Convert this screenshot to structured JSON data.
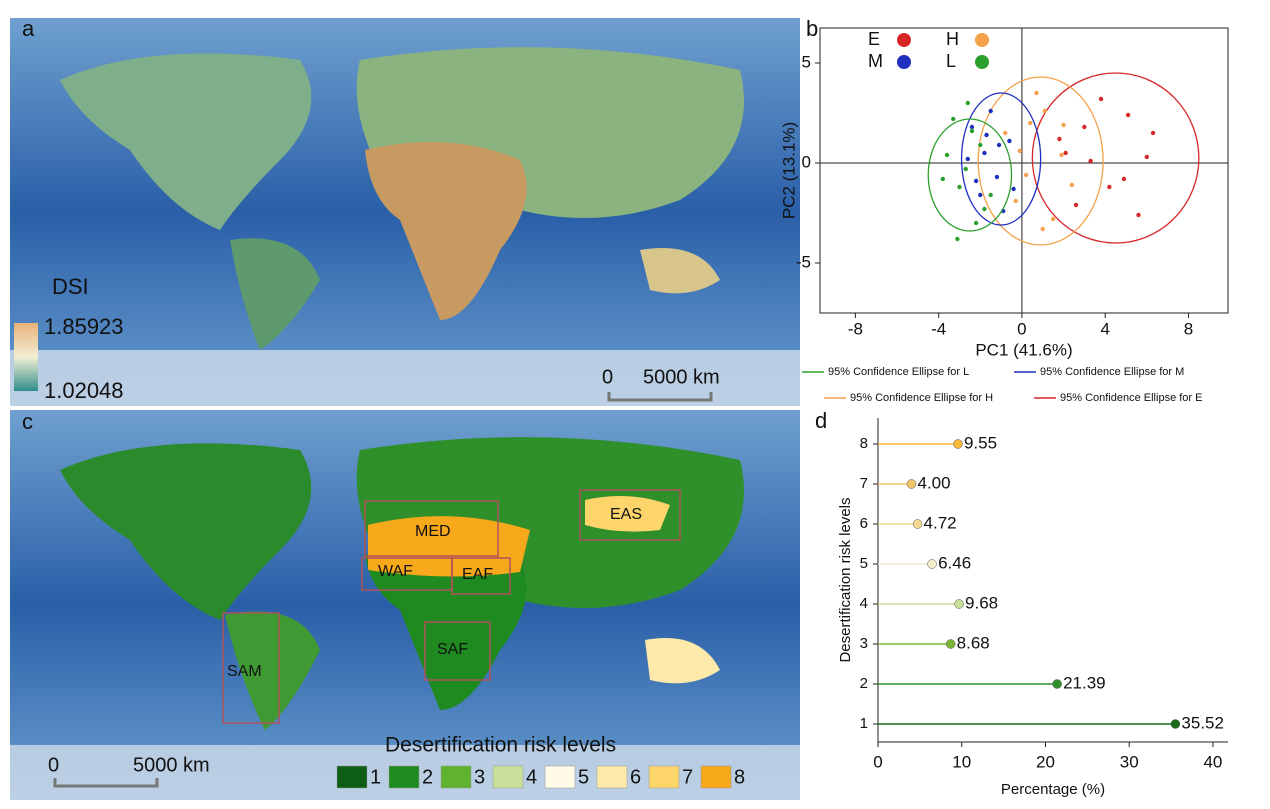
{
  "map_a": {
    "panel_label": "a",
    "legend_title": "DSI",
    "legend_max": 1.85923,
    "legend_min": 1.02048,
    "scale_start": "0",
    "scale_end": "5000 km"
  },
  "map_c": {
    "panel_label": "c",
    "regions": [
      "MED",
      "EAS",
      "WAF",
      "EAF",
      "SAF",
      "SAM"
    ],
    "legend_title": "Desertification risk levels",
    "levels": [
      {
        "label": "1",
        "color": "#0b5e14"
      },
      {
        "label": "2",
        "color": "#1f8a1f"
      },
      {
        "label": "3",
        "color": "#5fb32e"
      },
      {
        "label": "4",
        "color": "#c8e09a"
      },
      {
        "label": "5",
        "color": "#fffbe6"
      },
      {
        "label": "6",
        "color": "#fde9a9"
      },
      {
        "label": "7",
        "color": "#fdd56b"
      },
      {
        "label": "8",
        "color": "#f7a81b"
      }
    ],
    "scale_start": "0",
    "scale_end": "5000 km"
  },
  "chart_data": [
    {
      "type": "scatter",
      "panel_label": "b",
      "xlabel": "PC1 (41.6%)",
      "ylabel": "PC2 (13.1%)",
      "xlim": [
        -9.7,
        9.9
      ],
      "ylim": [
        -7.5,
        6.75
      ],
      "xticks": [
        -8,
        -4,
        0,
        4,
        8
      ],
      "yticks": [
        -5,
        0,
        5
      ],
      "series": [
        {
          "name": "E",
          "color": "#d62728",
          "x": [
            2.1,
            3.0,
            4.2,
            5.1,
            6.0,
            2.6,
            3.8,
            4.9,
            5.6,
            1.8,
            3.3,
            6.3
          ],
          "values": [
            0.5,
            1.8,
            -1.2,
            2.4,
            0.3,
            -2.1,
            3.2,
            -0.8,
            -2.6,
            1.2,
            0.1,
            1.5
          ],
          "ellipse": [
            4.5,
            0.25,
            4.0,
            4.25
          ],
          "ellipse_label": "95% Confidence Ellipse for E"
        },
        {
          "name": "H",
          "color": "#f5a04a",
          "x": [
            -0.8,
            0.2,
            1.1,
            1.9,
            -0.3,
            0.7,
            1.5,
            2.4,
            -0.1,
            1.0,
            0.4,
            2.0
          ],
          "values": [
            1.5,
            -0.6,
            2.6,
            0.4,
            -1.9,
            3.5,
            -2.8,
            -1.1,
            0.6,
            -3.3,
            2.0,
            1.9
          ],
          "ellipse": [
            0.9,
            0.1,
            3.0,
            4.2
          ],
          "ellipse_label": "95% Confidence Ellipse for H"
        },
        {
          "name": "M",
          "color": "#1f2fbf",
          "x": [
            -2.4,
            -1.8,
            -1.2,
            -0.6,
            -2.0,
            -1.5,
            -0.9,
            -2.6,
            -1.1,
            -0.4,
            -1.7,
            -2.2
          ],
          "values": [
            1.8,
            0.5,
            -0.7,
            1.1,
            -1.6,
            2.6,
            -2.4,
            0.2,
            0.9,
            -1.3,
            1.4,
            -0.9
          ],
          "ellipse": [
            -1.0,
            0.2,
            1.9,
            3.3
          ],
          "ellipse_label": "95% Confidence Ellipse for M"
        },
        {
          "name": "L",
          "color": "#2ca02c",
          "x": [
            -3.6,
            -3.0,
            -2.4,
            -1.8,
            -3.3,
            -2.7,
            -2.0,
            -3.8,
            -2.2,
            -1.5,
            -3.1,
            -2.6
          ],
          "values": [
            0.4,
            -1.2,
            1.6,
            -2.3,
            2.2,
            -0.3,
            0.9,
            -0.8,
            -3.0,
            -1.6,
            -3.8,
            3.0
          ],
          "ellipse": [
            -2.5,
            -0.6,
            2.0,
            2.8
          ],
          "ellipse_label": "95% Confidence Ellipse for L"
        }
      ]
    },
    {
      "type": "lollipop",
      "panel_label": "d",
      "xlabel": "Percentage (%)",
      "ylabel": "Desertification risk levels",
      "categories": [
        "1",
        "2",
        "3",
        "4",
        "5",
        "6",
        "7",
        "8"
      ],
      "values": [
        35.52,
        21.39,
        8.68,
        9.68,
        6.46,
        4.72,
        4.0,
        9.55
      ],
      "value_labels": [
        "35.52",
        "21.39",
        "8.68",
        "9.68",
        "6.46",
        "4.72",
        "4.00",
        "9.55"
      ],
      "colors": [
        "#1a6a1a",
        "#2f8f2a",
        "#7ab833",
        "#c9dd98",
        "#f3eccb",
        "#f4d990",
        "#f2c46a",
        "#f5b83d"
      ],
      "xlim": [
        0,
        41.8
      ],
      "xticks": [
        0,
        10,
        20,
        30,
        40
      ]
    }
  ]
}
